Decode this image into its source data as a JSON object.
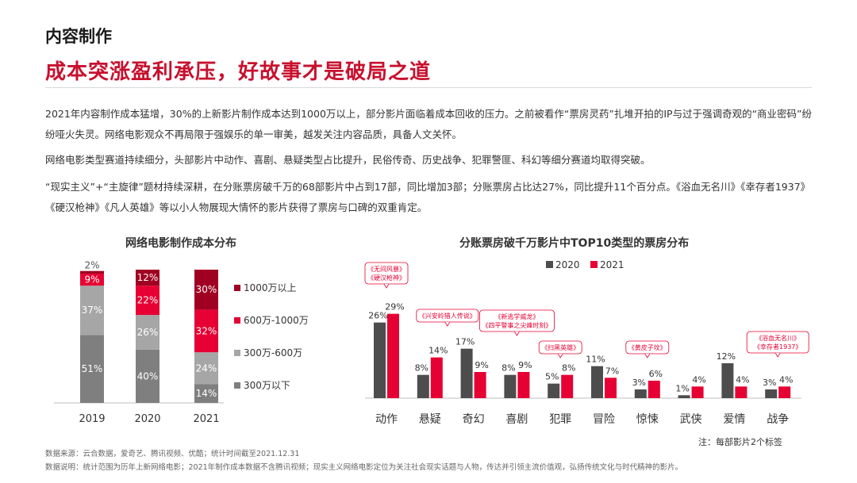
{
  "header": {
    "section": "内容制作",
    "headline": "成本突涨盈利承压，好故事才是破局之道"
  },
  "paragraphs": [
    "2021年内容制作成本猛增，30%的上新影片制作成本达到1000万以上，部分影片面临着成本回收的压力。之前被看作“票房灵药”扎堆开拍的IP与过于强调奇观的“商业密码”纷纷哑火失灵。网络电影观众不再局限于强娱乐的单一审美，越发关注内容品质，具备人文关怀。",
    "网络电影类型赛道持续细分，头部影片中动作、喜剧、悬疑类型占比提升，民俗传奇、历史战争、犯罪警匪、科幻等细分赛道均取得突破。",
    "“现实主义”+“主旋律”题材持续深耕，在分账票房破千万的68部影片中占到17部，同比增加3部；分账票房占比达27%，同比提升11个百分点。《浴血无名川》《幸存者1937》《硬汉枪神》《凡人英雄》等以小人物展现大情怀的影片获得了票房与口碑的双重肯定。"
  ],
  "chart_data": [
    {
      "type": "bar",
      "stacked": true,
      "title": "网络电影制作成本分布",
      "categories": [
        "2019",
        "2020",
        "2021"
      ],
      "series": [
        {
          "name": "300万以下",
          "values": [
            51,
            40,
            14
          ],
          "color": "#7f7f7f"
        },
        {
          "name": "300万-600万",
          "values": [
            37,
            26,
            24
          ],
          "color": "#a6a6a6"
        },
        {
          "name": "600万-1000万",
          "values": [
            9,
            22,
            32
          ],
          "color": "#e60033"
        },
        {
          "name": "1000万以上",
          "values": [
            2,
            12,
            30
          ],
          "color": "#a00022"
        }
      ],
      "value_labels": [
        [
          "51%",
          "40%",
          "14%"
        ],
        [
          "37%",
          "26%",
          "24%"
        ],
        [
          "9%",
          "22%",
          "32%"
        ],
        [
          "2%",
          "12%",
          "30%"
        ]
      ],
      "ylim": [
        0,
        100
      ],
      "legend": "right"
    },
    {
      "type": "bar",
      "title": "分账票房破千万影片中TOP10类型的票房分布",
      "categories": [
        "动作",
        "悬疑",
        "奇幻",
        "喜剧",
        "犯罪",
        "冒险",
        "惊悚",
        "武侠",
        "爱情",
        "战争"
      ],
      "series": [
        {
          "name": "2020",
          "values": [
            26,
            8,
            17,
            8,
            5,
            11,
            3,
            1,
            12,
            3
          ],
          "color": "#4d4d4d"
        },
        {
          "name": "2021",
          "values": [
            29,
            14,
            9,
            9,
            8,
            7,
            6,
            4,
            4,
            4
          ],
          "color": "#e60033"
        }
      ],
      "value_labels": [
        [
          "26%",
          "8%",
          "17%",
          "8%",
          "5%",
          "11%",
          "3%",
          "1%",
          "12%",
          "3%"
        ],
        [
          "29%",
          "14%",
          "9%",
          "9%",
          "8%",
          "7%",
          "6%",
          "4%",
          "4%",
          "4%"
        ]
      ],
      "ylim": [
        0,
        30
      ],
      "legend": "top",
      "annotations": [
        {
          "category": "动作",
          "lines": [
            "《无间风暴》",
            "《硬汉枪神》"
          ]
        },
        {
          "category": "悬疑",
          "lines": [
            "《兴安岭猎人传说》"
          ]
        },
        {
          "category": "喜剧",
          "lines": [
            "《新逃学威龙》",
            "《四平警事之尖峰时刻》"
          ]
        },
        {
          "category": "犯罪",
          "lines": [
            "《扫黑英雄》"
          ]
        },
        {
          "category": "惊悚",
          "lines": [
            "《黄皮子坟》"
          ]
        },
        {
          "category": "战争",
          "lines": [
            "《浴血无名川》",
            "《幸存者1937》"
          ]
        }
      ],
      "note": "注：每部影片2个标签"
    }
  ],
  "footer": {
    "source": "数据来源：云合数据，爱奇艺、腾讯视频、优酷；统计时间截至2021.12.31",
    "explanation": "数据说明：统计范围为历年上新网络电影；2021年制作成本数据不含腾讯视频；现实主义网络电影定位为关注社会现实话题与人物，传达并引领主流价值观，弘扬传统文化与时代精神的影片。"
  }
}
